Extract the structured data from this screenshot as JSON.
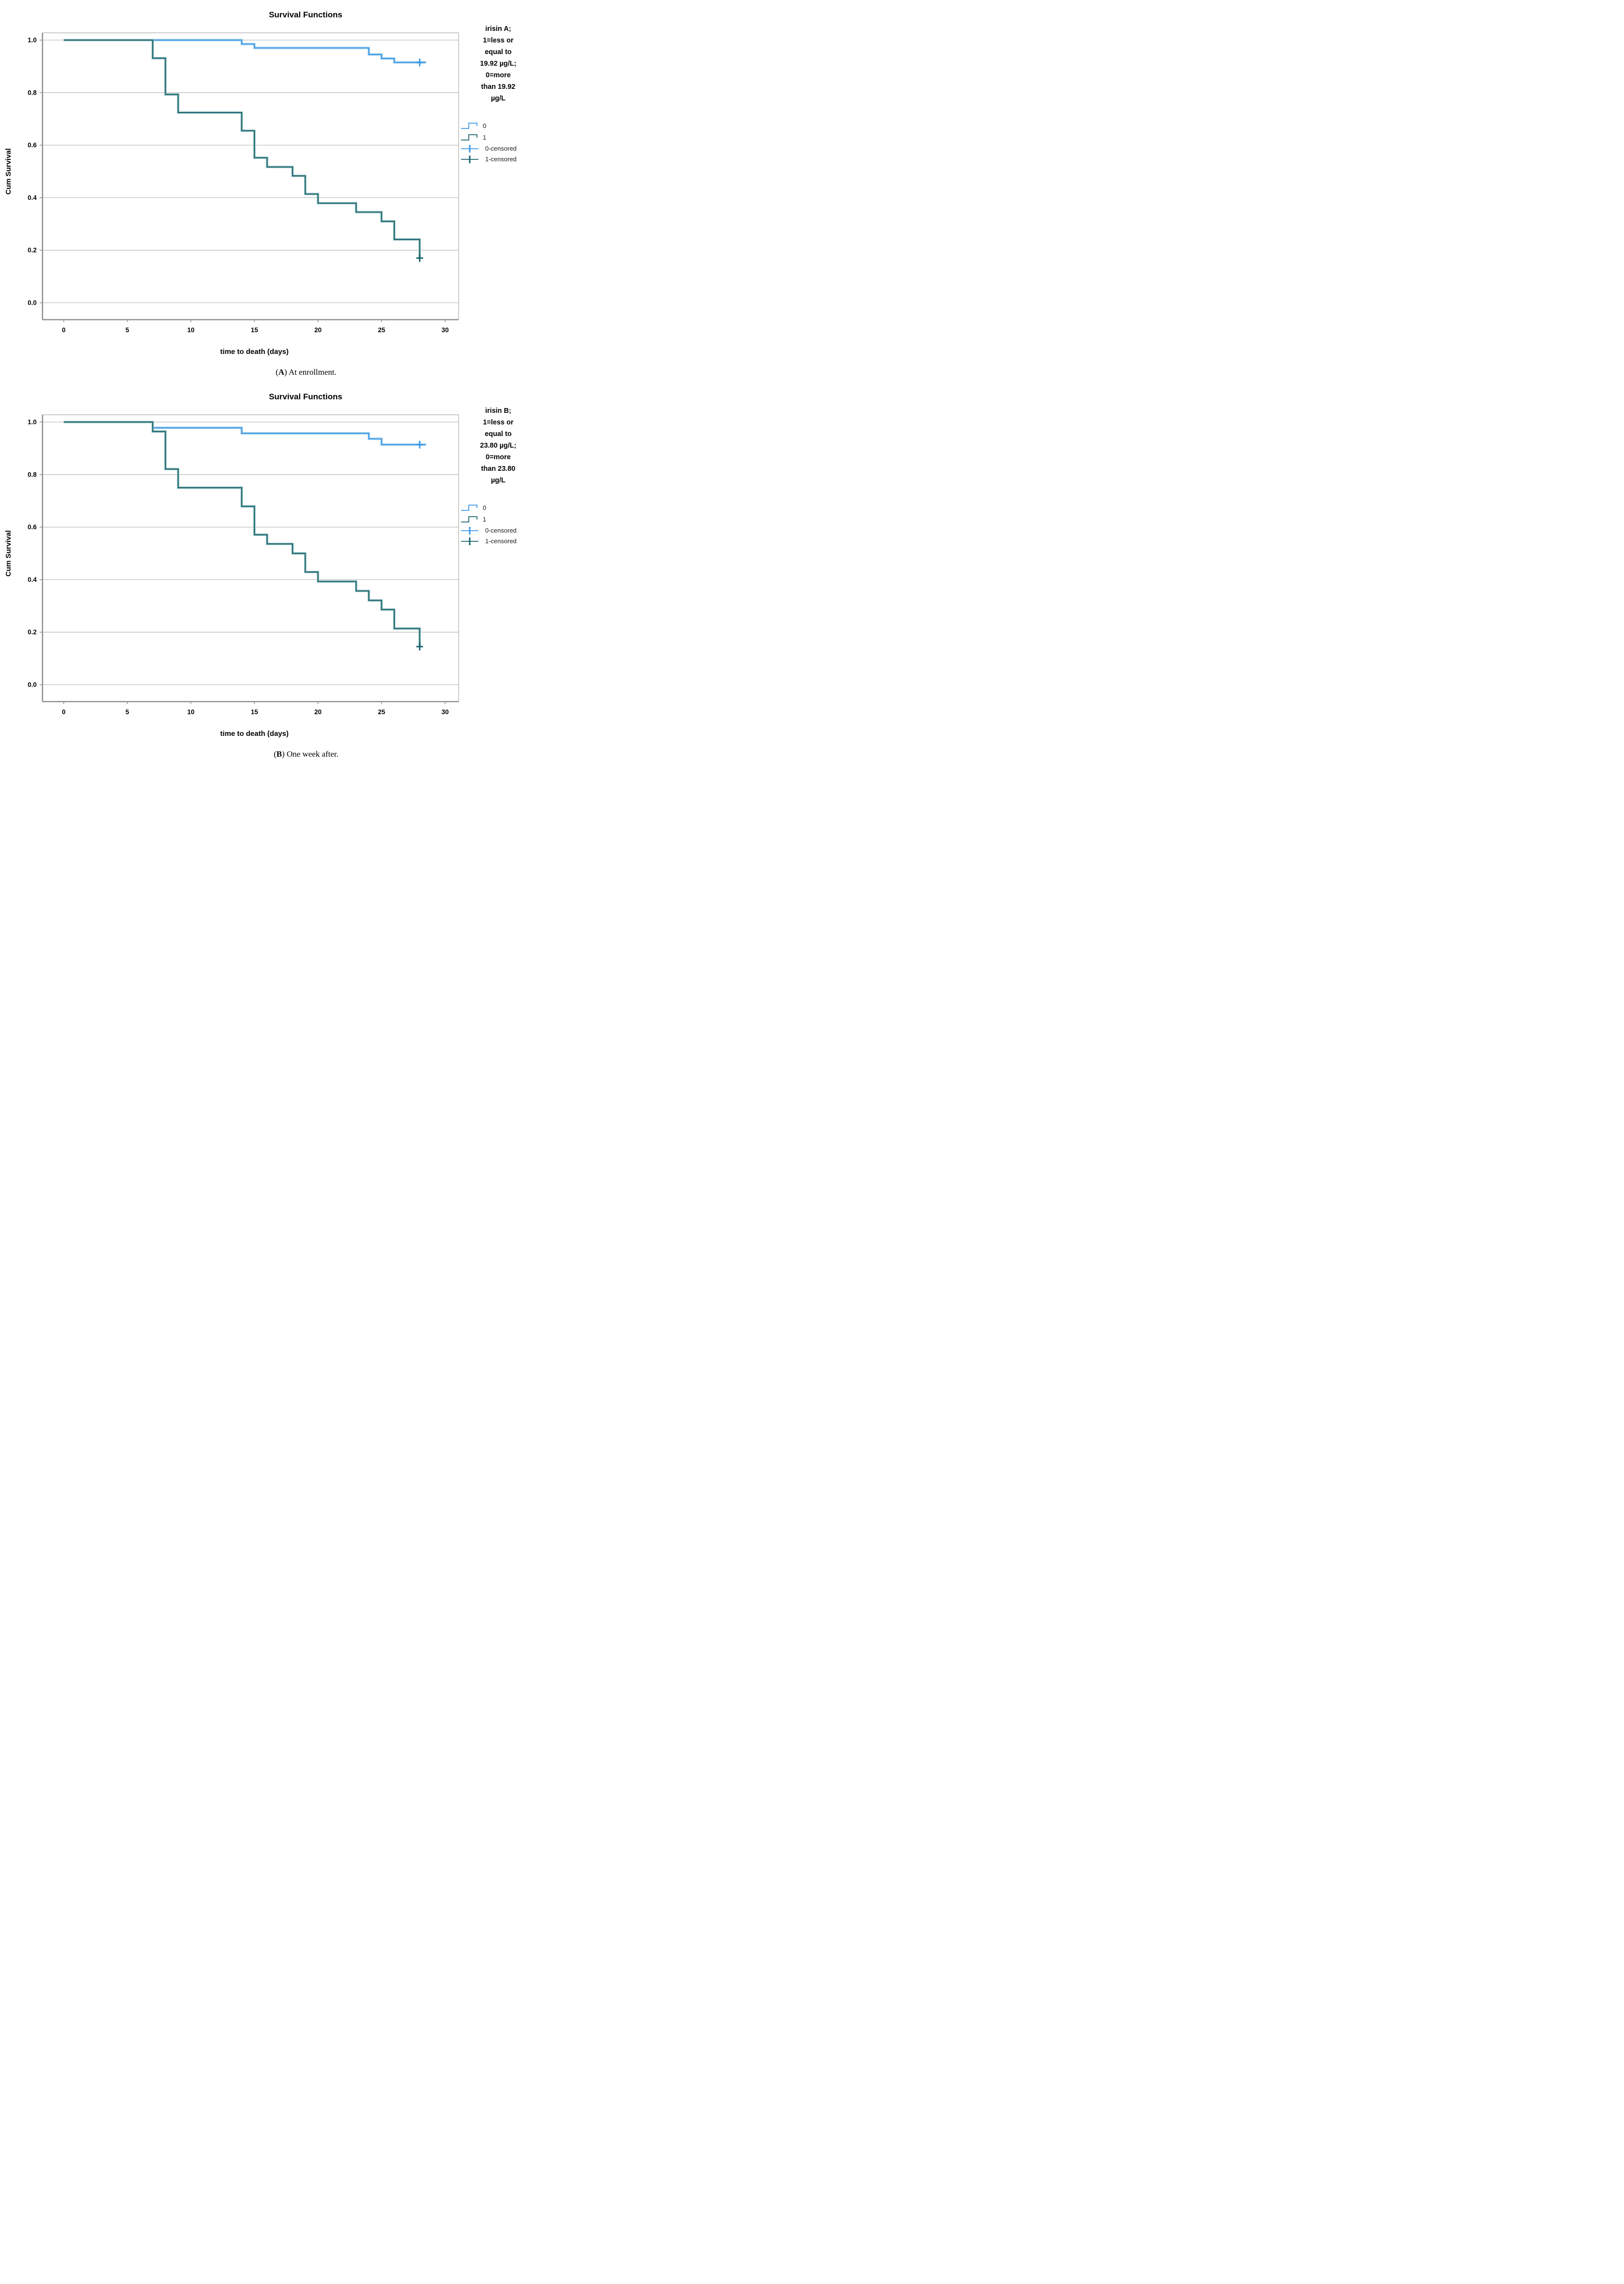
{
  "page_background": "#ffffff",
  "shared": {
    "title": "Survival Functions",
    "xlabel": "time to death (days)",
    "ylabel": "Cum Survival",
    "grid_color": "#bfbfbf",
    "frame_color": "#a9a9a9",
    "axis_color": "#8f8f8f",
    "blue": "#3d98e4",
    "blue_halo": "#a9d4f2",
    "teal": "#1b656d",
    "teal_halo": "#9ec5c7"
  },
  "chart_data": [
    {
      "panel": "A",
      "type": "line",
      "subtype": "kaplan-meier-step",
      "title": "Survival Functions",
      "xlabel": "time to death (days)",
      "ylabel": "Cum Survival",
      "xlim": [
        0,
        30
      ],
      "ylim": [
        0.0,
        1.0
      ],
      "xticks": [
        "0",
        "5",
        "10",
        "15",
        "20",
        "25",
        "30"
      ],
      "yticks": [
        "1.0",
        "0.8",
        "0.6",
        "0.4",
        "0.2",
        "0.0"
      ],
      "grid": "horizontal",
      "legend_position": "right",
      "legend_title_lines": [
        "irisin A;",
        "1=less or",
        "equal to",
        "19.92 µg/L;",
        "0=more",
        "than 19.92",
        "µg/L"
      ],
      "legend_entries": [
        {
          "label": "0",
          "glyph": "step",
          "color": "#3d98e4"
        },
        {
          "label": "1",
          "glyph": "step",
          "color": "#1b656d"
        },
        {
          "label": "0-censored",
          "glyph": "censor",
          "color": "#3d98e4"
        },
        {
          "label": "1-censored",
          "glyph": "censor",
          "color": "#1b656d"
        }
      ],
      "series": [
        {
          "name": "0",
          "meaning": "more than 19.92 µg/L",
          "color": "#3d98e4",
          "halo": "#a9d4f2",
          "start": [
            0,
            1.0
          ],
          "steps": [
            [
              14,
              0.985
            ],
            [
              15,
              0.97
            ],
            [
              24,
              0.945
            ],
            [
              25,
              0.93
            ],
            [
              26,
              0.915
            ]
          ],
          "end_t": 28.5,
          "censored": [
            [
              28,
              0.915
            ]
          ]
        },
        {
          "name": "1",
          "meaning": "less or equal to 19.92 µg/L",
          "color": "#1b656d",
          "halo": "#9ec5c7",
          "start": [
            0,
            1.0
          ],
          "steps": [
            [
              7,
              0.931
            ],
            [
              8,
              0.793
            ],
            [
              9,
              0.724
            ],
            [
              14,
              0.655
            ],
            [
              15,
              0.552
            ],
            [
              16,
              0.517
            ],
            [
              18,
              0.483
            ],
            [
              19,
              0.414
            ],
            [
              20,
              0.379
            ],
            [
              23,
              0.345
            ],
            [
              25,
              0.31
            ],
            [
              26,
              0.241
            ],
            [
              28,
              0.17
            ]
          ],
          "end_t": 28,
          "censored": [
            [
              28,
              0.17
            ]
          ]
        }
      ],
      "caption": {
        "open": "(",
        "letter": "A",
        "rest": ") At enrollment."
      }
    },
    {
      "panel": "B",
      "type": "line",
      "subtype": "kaplan-meier-step",
      "title": "Survival Functions",
      "xlabel": "time to death (days)",
      "ylabel": "Cum Survival",
      "xlim": [
        0,
        30
      ],
      "ylim": [
        0.0,
        1.0
      ],
      "xticks": [
        "0",
        "5",
        "10",
        "15",
        "20",
        "25",
        "30"
      ],
      "yticks": [
        "1.0",
        "0.8",
        "0.6",
        "0.4",
        "0.2",
        "0.0"
      ],
      "grid": "horizontal",
      "legend_position": "right",
      "legend_title_lines": [
        "irisin B;",
        "1=less or",
        "equal to",
        "23.80 µg/L;",
        "0=more",
        "than 23.80",
        "µg/L"
      ],
      "legend_entries": [
        {
          "label": "0",
          "glyph": "step",
          "color": "#3d98e4"
        },
        {
          "label": "1",
          "glyph": "step",
          "color": "#1b656d"
        },
        {
          "label": "0-censored",
          "glyph": "censor",
          "color": "#3d98e4"
        },
        {
          "label": "1-censored",
          "glyph": "censor",
          "color": "#1b656d"
        }
      ],
      "series": [
        {
          "name": "0",
          "meaning": "more than 23.80 µg/L",
          "color": "#3d98e4",
          "halo": "#a9d4f2",
          "start": [
            0,
            1.0
          ],
          "steps": [
            [
              7,
              0.978
            ],
            [
              14,
              0.957
            ],
            [
              24,
              0.936
            ],
            [
              25,
              0.914
            ]
          ],
          "end_t": 28.5,
          "censored": [
            [
              28,
              0.914
            ]
          ]
        },
        {
          "name": "1",
          "meaning": "less or equal to 23.80 µg/L",
          "color": "#1b656d",
          "halo": "#9ec5c7",
          "start": [
            0,
            1.0
          ],
          "steps": [
            [
              7,
              0.964
            ],
            [
              8,
              0.821
            ],
            [
              9,
              0.75
            ],
            [
              14,
              0.679
            ],
            [
              15,
              0.571
            ],
            [
              16,
              0.536
            ],
            [
              18,
              0.5
            ],
            [
              19,
              0.429
            ],
            [
              20,
              0.393
            ],
            [
              23,
              0.357
            ],
            [
              24,
              0.321
            ],
            [
              25,
              0.286
            ],
            [
              26,
              0.214
            ],
            [
              28,
              0.145
            ]
          ],
          "end_t": 28,
          "censored": [
            [
              28,
              0.145
            ]
          ]
        }
      ],
      "caption": {
        "open": "(",
        "letter": "B",
        "rest": ") One week after."
      }
    }
  ]
}
